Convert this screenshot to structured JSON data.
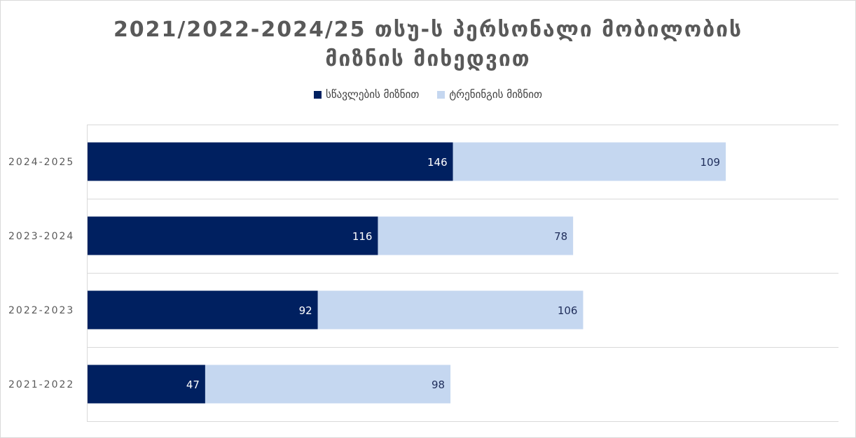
{
  "chart_data": {
    "type": "bar",
    "orientation": "horizontal",
    "stacked": true,
    "title_lines": [
      "2021/2022-2024/25 თსუ-ს პერსონალი მობილობის",
      "მიზნის მიხედვით"
    ],
    "categories": [
      "2024-2025",
      "2023-2024",
      "2022-2023",
      "2021-2022"
    ],
    "series": [
      {
        "name": "სწავლების მიზნით",
        "values": [
          146,
          116,
          92,
          47
        ],
        "color": "#002060",
        "label_color": "#ffffff"
      },
      {
        "name": "ტრენინგის მიზნით",
        "values": [
          109,
          78,
          106,
          98
        ],
        "color": "#c5d7f0",
        "label_color": "#1f2d5a"
      }
    ],
    "xlim": [
      0,
      300
    ],
    "legend_position": "top",
    "grid": "horizontal separators"
  }
}
